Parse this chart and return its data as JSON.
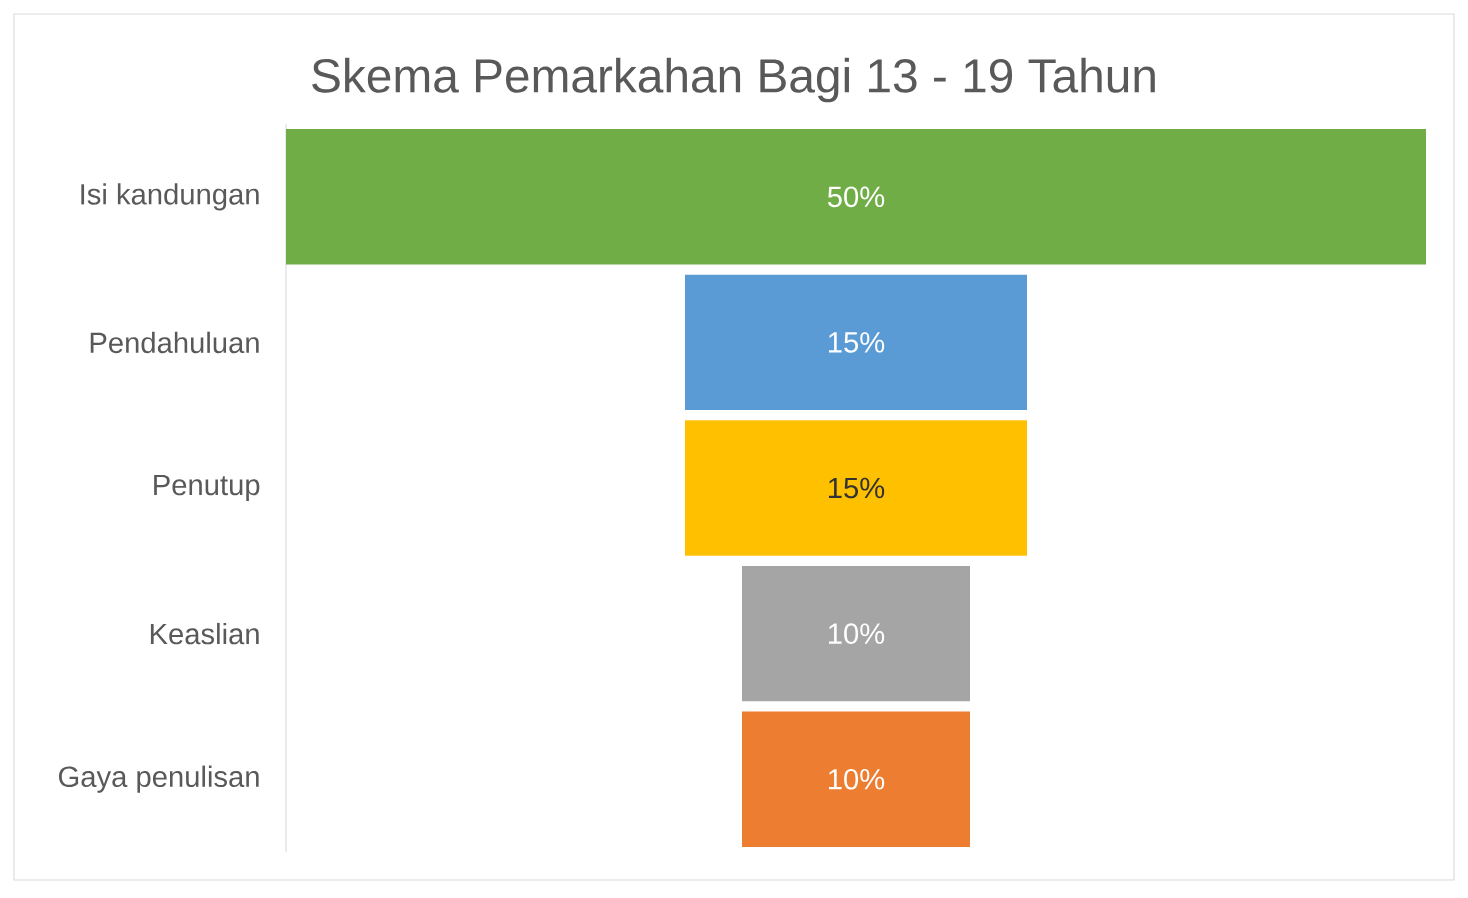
{
  "chart_data": {
    "type": "other",
    "title": "Skema Pemarkahan Bagi 13 - 19 Tahun",
    "categories": [
      "Isi kandungan",
      "Pendahuluan",
      "Penutup",
      "Keaslian",
      "Gaya penulisan"
    ],
    "values": [
      50,
      15,
      15,
      10,
      10
    ],
    "colors": [
      "#70ad47",
      "#5b9bd5",
      "#ffc000",
      "#a5a5a5",
      "#ed7d31"
    ],
    "value_labels": [
      "50%",
      "15%",
      "15%",
      "10%",
      "10%"
    ]
  }
}
